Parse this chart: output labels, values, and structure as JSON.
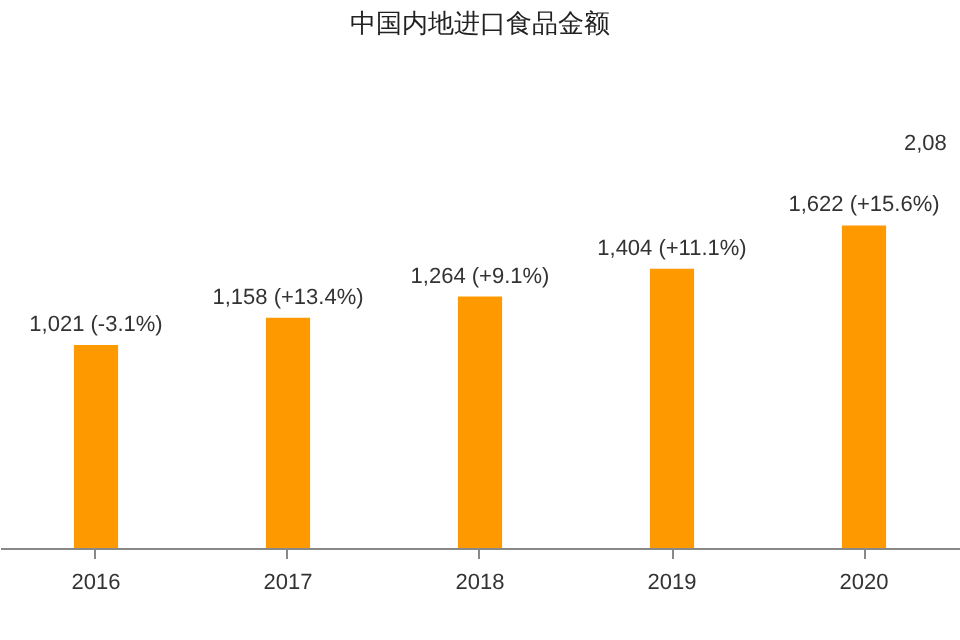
{
  "chart_data": {
    "type": "bar",
    "title": "中国内地进口食品金额",
    "categories": [
      "2016",
      "2017",
      "2018",
      "2019",
      "2020"
    ],
    "values": [
      1021,
      1158,
      1264,
      1404,
      1622
    ],
    "value_labels": [
      "1,021 (-3.1%)",
      "1,158 (+13.4%)",
      "1,264 (+9.1%)",
      "1,404 (+11.1%)",
      "1,622 (+15.6%)"
    ],
    "color": "#ff9900",
    "grid": false,
    "annotations": [
      "2,08"
    ]
  }
}
